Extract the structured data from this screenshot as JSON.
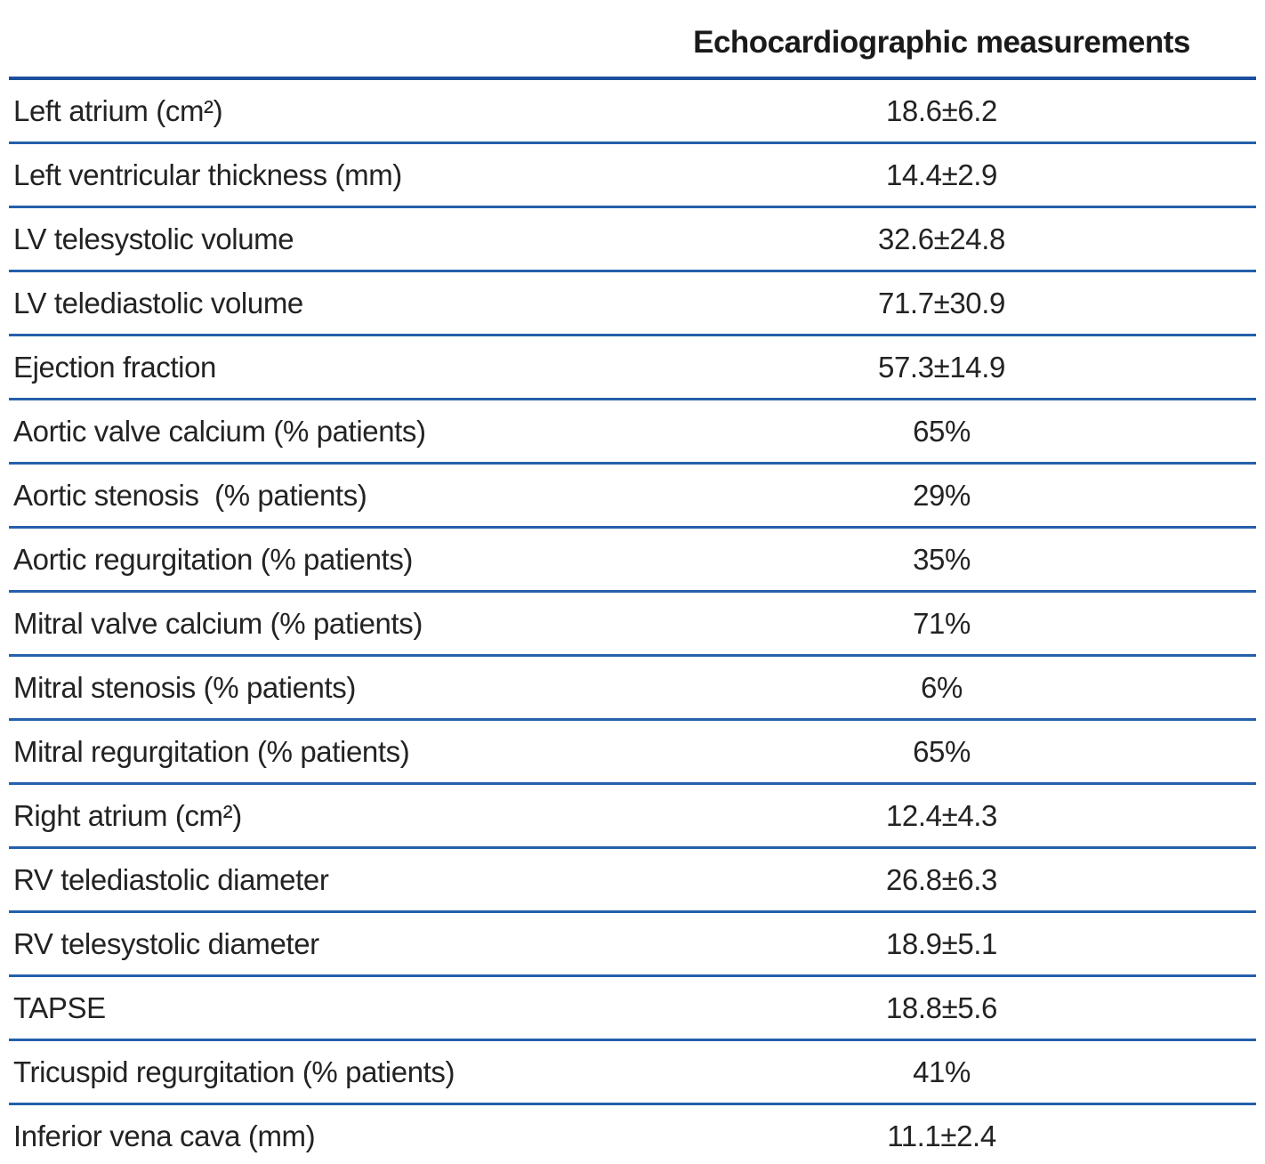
{
  "table": {
    "title": "Echocardiographic measurements",
    "rows": [
      {
        "label": "Left atrium (cm²)",
        "value": "18.6±6.2"
      },
      {
        "label": "Left ventricular thickness (mm)",
        "value": "14.4±2.9"
      },
      {
        "label": "LV telesystolic volume",
        "value": "32.6±24.8"
      },
      {
        "label": "LV telediastolic volume",
        "value": "71.7±30.9"
      },
      {
        "label": "Ejection fraction",
        "value": "57.3±14.9"
      },
      {
        "label": "Aortic valve calcium (% patients)",
        "value": "65%"
      },
      {
        "label": "Aortic stenosis  (% patients)",
        "value": "29%"
      },
      {
        "label": "Aortic regurgitation (% patients)",
        "value": "35%"
      },
      {
        "label": "Mitral valve calcium (% patients)",
        "value": "71%"
      },
      {
        "label": "Mitral stenosis (% patients)",
        "value": "6%"
      },
      {
        "label": "Mitral regurgitation (% patients)",
        "value": "65%"
      },
      {
        "label": "Right atrium (cm²)",
        "value": "12.4±4.3"
      },
      {
        "label": "RV telediastolic diameter",
        "value": "26.8±6.3"
      },
      {
        "label": "RV telesystolic diameter",
        "value": "18.9±5.1"
      },
      {
        "label": "TAPSE",
        "value": "18.8±5.6"
      },
      {
        "label": "Tricuspid regurgitation (% patients)",
        "value": "41%"
      },
      {
        "label": "Inferior vena cava (mm)",
        "value": "11.1±2.4"
      }
    ]
  },
  "colors": {
    "rule_thin": "#2560ab",
    "rule_thick": "#1c4f9e",
    "text": "#232323"
  }
}
